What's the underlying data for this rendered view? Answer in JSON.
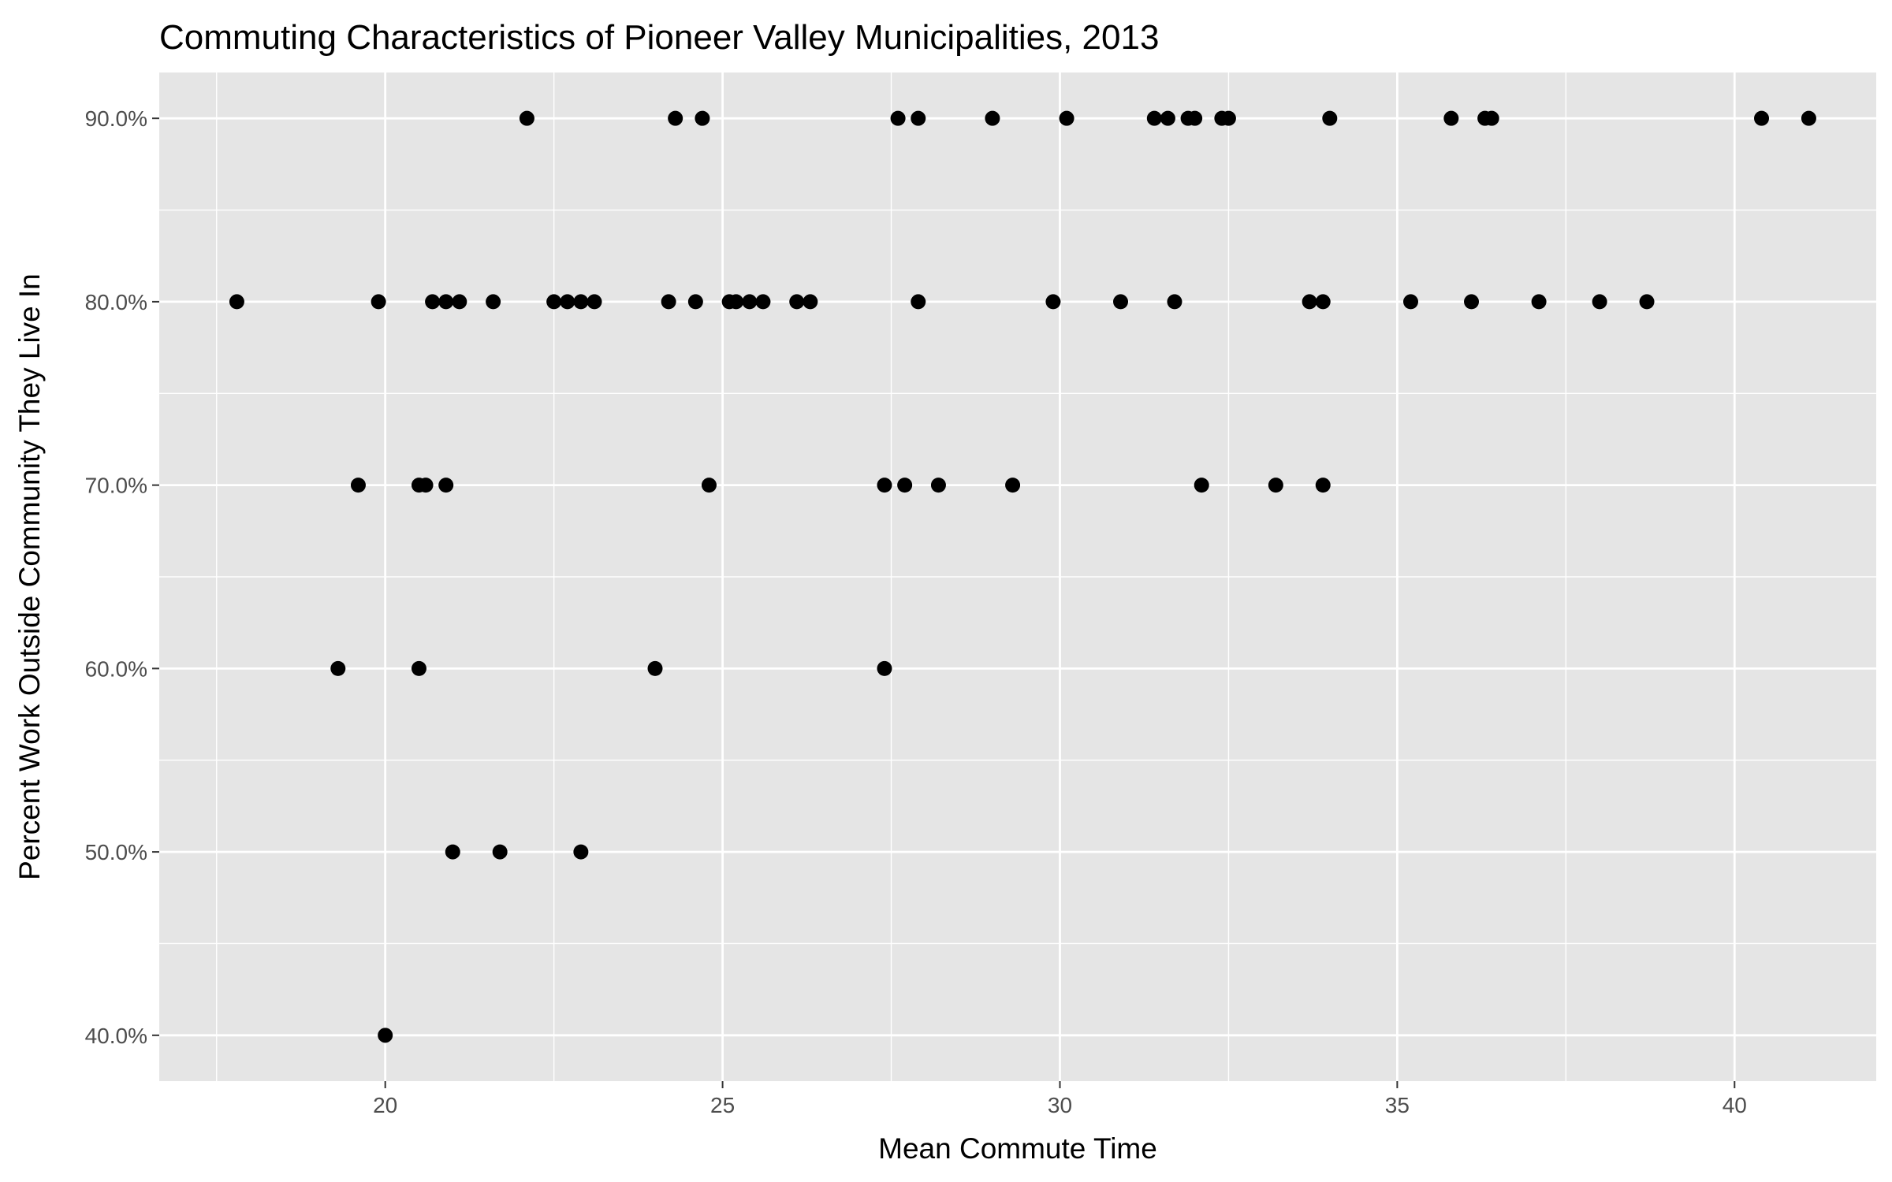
{
  "chart_data": {
    "type": "scatter",
    "title": "Commuting Characteristics of Pioneer Valley Municipalities, 2013",
    "xlabel": "Mean Commute Time",
    "ylabel": "Percent Work Outside Community They Live In",
    "xlim": [
      16.65,
      42.1
    ],
    "ylim": [
      0.375,
      0.925
    ],
    "x_ticks": [
      20,
      25,
      30,
      35,
      40
    ],
    "x_tick_labels": [
      "20",
      "25",
      "30",
      "35",
      "40"
    ],
    "y_ticks": [
      0.4,
      0.5,
      0.6,
      0.7,
      0.8,
      0.9
    ],
    "y_tick_labels": [
      "40.0%",
      "50.0%",
      "60.0%",
      "70.0%",
      "80.0%",
      "90.0%"
    ],
    "grid": true,
    "panel_color": "#e5e5e5",
    "grid_color": "#ffffff",
    "point_color": "#000000",
    "points": [
      {
        "x": 22.1,
        "y": 0.9
      },
      {
        "x": 24.3,
        "y": 0.9
      },
      {
        "x": 24.7,
        "y": 0.9
      },
      {
        "x": 27.6,
        "y": 0.9
      },
      {
        "x": 27.9,
        "y": 0.9
      },
      {
        "x": 29.0,
        "y": 0.9
      },
      {
        "x": 30.1,
        "y": 0.9
      },
      {
        "x": 31.4,
        "y": 0.9
      },
      {
        "x": 31.6,
        "y": 0.9
      },
      {
        "x": 31.9,
        "y": 0.9
      },
      {
        "x": 32.0,
        "y": 0.9
      },
      {
        "x": 32.4,
        "y": 0.9
      },
      {
        "x": 32.5,
        "y": 0.9
      },
      {
        "x": 34.0,
        "y": 0.9
      },
      {
        "x": 35.8,
        "y": 0.9
      },
      {
        "x": 36.3,
        "y": 0.9
      },
      {
        "x": 36.4,
        "y": 0.9
      },
      {
        "x": 40.4,
        "y": 0.9
      },
      {
        "x": 41.1,
        "y": 0.9
      },
      {
        "x": 17.8,
        "y": 0.8
      },
      {
        "x": 19.9,
        "y": 0.8
      },
      {
        "x": 20.7,
        "y": 0.8
      },
      {
        "x": 20.9,
        "y": 0.8
      },
      {
        "x": 21.1,
        "y": 0.8
      },
      {
        "x": 21.6,
        "y": 0.8
      },
      {
        "x": 22.5,
        "y": 0.8
      },
      {
        "x": 22.7,
        "y": 0.8
      },
      {
        "x": 22.9,
        "y": 0.8
      },
      {
        "x": 23.1,
        "y": 0.8
      },
      {
        "x": 24.2,
        "y": 0.8
      },
      {
        "x": 24.6,
        "y": 0.8
      },
      {
        "x": 25.1,
        "y": 0.8
      },
      {
        "x": 25.2,
        "y": 0.8
      },
      {
        "x": 25.4,
        "y": 0.8
      },
      {
        "x": 25.6,
        "y": 0.8
      },
      {
        "x": 26.1,
        "y": 0.8
      },
      {
        "x": 26.3,
        "y": 0.8
      },
      {
        "x": 27.9,
        "y": 0.8
      },
      {
        "x": 29.9,
        "y": 0.8
      },
      {
        "x": 30.9,
        "y": 0.8
      },
      {
        "x": 31.7,
        "y": 0.8
      },
      {
        "x": 33.7,
        "y": 0.8
      },
      {
        "x": 33.9,
        "y": 0.8
      },
      {
        "x": 35.2,
        "y": 0.8
      },
      {
        "x": 36.1,
        "y": 0.8
      },
      {
        "x": 37.1,
        "y": 0.8
      },
      {
        "x": 38.0,
        "y": 0.8
      },
      {
        "x": 38.7,
        "y": 0.8
      },
      {
        "x": 19.6,
        "y": 0.7
      },
      {
        "x": 20.5,
        "y": 0.7
      },
      {
        "x": 20.6,
        "y": 0.7
      },
      {
        "x": 20.9,
        "y": 0.7
      },
      {
        "x": 24.8,
        "y": 0.7
      },
      {
        "x": 27.4,
        "y": 0.7
      },
      {
        "x": 27.7,
        "y": 0.7
      },
      {
        "x": 28.2,
        "y": 0.7
      },
      {
        "x": 29.3,
        "y": 0.7
      },
      {
        "x": 32.1,
        "y": 0.7
      },
      {
        "x": 33.2,
        "y": 0.7
      },
      {
        "x": 33.9,
        "y": 0.7
      },
      {
        "x": 19.3,
        "y": 0.6
      },
      {
        "x": 20.5,
        "y": 0.6
      },
      {
        "x": 24.0,
        "y": 0.6
      },
      {
        "x": 27.4,
        "y": 0.6
      },
      {
        "x": 21.0,
        "y": 0.5
      },
      {
        "x": 21.7,
        "y": 0.5
      },
      {
        "x": 22.9,
        "y": 0.5
      },
      {
        "x": 20.0,
        "y": 0.4
      }
    ]
  }
}
